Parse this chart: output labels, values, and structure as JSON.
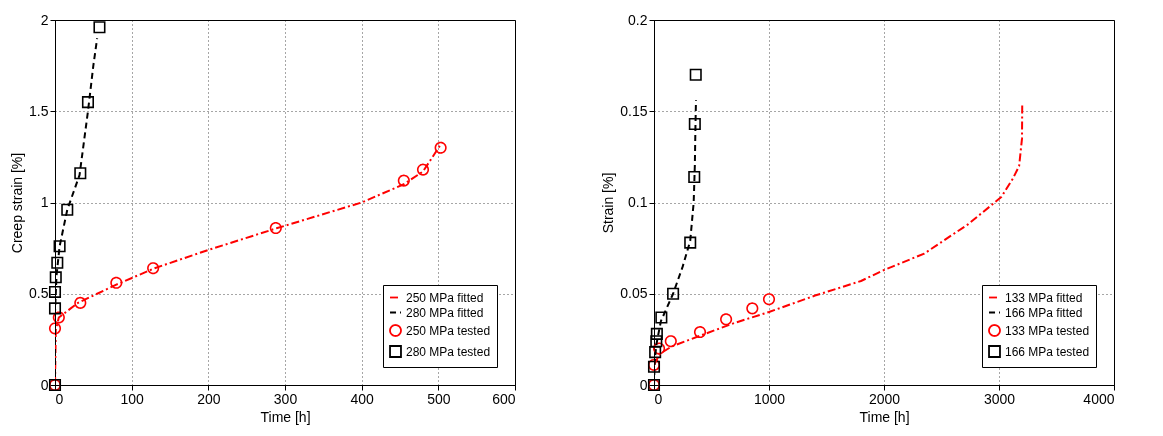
{
  "chart_data": [
    {
      "type": "line",
      "xlabel": "Time [h]",
      "ylabel": "Creep strain [%]",
      "xlim": [
        0,
        600
      ],
      "ylim": [
        0,
        2
      ],
      "xticks": [
        0,
        100,
        200,
        300,
        400,
        500,
        600
      ],
      "yticks": [
        0,
        0.5,
        1,
        1.5,
        2
      ],
      "grid": true,
      "legend": "bottom right",
      "series": [
        {
          "name": "250 MPa fitted",
          "type": "line",
          "color": "#ff0000",
          "line_style": "dashdot",
          "marker": "none",
          "x": [
            0,
            1,
            5,
            30,
            80,
            130,
            200,
            290,
            400,
            455,
            480,
            505
          ],
          "values": [
            0,
            0.3,
            0.37,
            0.45,
            0.55,
            0.64,
            0.74,
            0.86,
            1.0,
            1.1,
            1.17,
            1.33
          ]
        },
        {
          "name": "280 MPa fitted",
          "type": "line",
          "color": "#000000",
          "line_style": "dashed",
          "marker": "none",
          "x": [
            0,
            0,
            2,
            6,
            16,
            32,
            43,
            50,
            55
          ],
          "values": [
            0,
            0.4,
            0.6,
            0.76,
            0.96,
            1.15,
            1.5,
            1.75,
            1.9
          ]
        },
        {
          "name": "250 MPa tested",
          "type": "scatter",
          "color": "#ff0000",
          "marker": "circle",
          "x": [
            0,
            0,
            5,
            33,
            80,
            128,
            288,
            455,
            480,
            503
          ],
          "values": [
            0,
            0.31,
            0.37,
            0.45,
            0.56,
            0.64,
            0.86,
            1.12,
            1.18,
            1.3
          ]
        },
        {
          "name": "280 MPa tested",
          "type": "scatter",
          "color": "#000000",
          "marker": "square",
          "x": [
            0,
            0,
            0,
            1,
            3,
            6,
            16,
            33,
            43,
            58
          ],
          "values": [
            0,
            0.42,
            0.51,
            0.59,
            0.67,
            0.76,
            0.96,
            1.16,
            1.55,
            1.96
          ]
        }
      ]
    },
    {
      "type": "line",
      "xlabel": "Time [h]",
      "ylabel": "Strain [%]",
      "xlim": [
        0,
        4000
      ],
      "ylim": [
        0,
        0.2
      ],
      "xticks": [
        0,
        1000,
        2000,
        3000,
        4000
      ],
      "yticks": [
        0,
        0.05,
        0.1,
        0.15,
        0.2
      ],
      "grid": true,
      "legend": "bottom right",
      "series": [
        {
          "name": "133 MPa fitted",
          "type": "line",
          "color": "#ff0000",
          "line_style": "dashdot",
          "marker": "none",
          "x": [
            0,
            50,
            150,
            400,
            700,
            1000,
            1400,
            1800,
            2000,
            2350,
            2730,
            3020,
            3120,
            3175,
            3200,
            3202
          ],
          "values": [
            0.011,
            0.017,
            0.021,
            0.027,
            0.034,
            0.04,
            0.049,
            0.057,
            0.063,
            0.072,
            0.088,
            0.103,
            0.113,
            0.12,
            0.135,
            0.154
          ]
        },
        {
          "name": "166 MPa fitted",
          "type": "line",
          "color": "#000000",
          "line_style": "dashed",
          "marker": "none",
          "x": [
            0,
            5,
            20,
            60,
            166,
            250,
            315,
            345,
            355,
            360,
            365
          ],
          "values": [
            0,
            0.012,
            0.022,
            0.035,
            0.05,
            0.065,
            0.079,
            0.1,
            0.12,
            0.14,
            0.156
          ]
        },
        {
          "name": "133 MPa tested",
          "type": "scatter",
          "color": "#ff0000",
          "marker": "circle",
          "x": [
            0,
            0,
            44,
            146,
            400,
            627,
            855,
            1000
          ],
          "values": [
            0,
            0.011,
            0.02,
            0.024,
            0.029,
            0.036,
            0.042,
            0.047
          ]
        },
        {
          "name": "166 MPa tested",
          "type": "scatter",
          "color": "#000000",
          "marker": "square",
          "x": [
            0,
            0,
            10,
            20,
            25,
            64,
            166,
            315,
            350,
            355,
            363
          ],
          "values": [
            0,
            0.01,
            0.018,
            0.024,
            0.028,
            0.037,
            0.05,
            0.078,
            0.114,
            0.143,
            0.17
          ]
        }
      ]
    }
  ]
}
